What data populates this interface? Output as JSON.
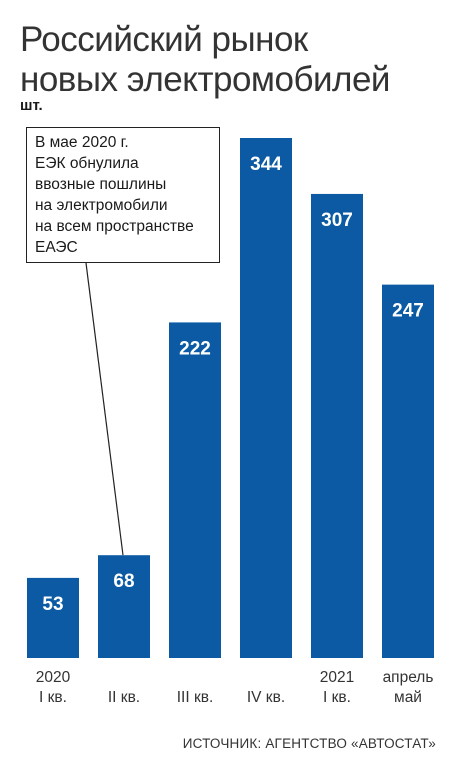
{
  "title_line1": "Российский рынок",
  "title_line2": "новых электромобилей",
  "unit": "шт.",
  "annotation": [
    "В мае 2020 г.",
    "ЕЭК обнулила",
    "ввозные пошлины",
    "на электромобили",
    "на всем пространстве",
    "ЕАЭС"
  ],
  "source": "ИСТОЧНИК: АГЕНТСТВО «АВТОСТАТ»",
  "colors": {
    "bar": "#0b5aa3",
    "bar_label": "#ffffff",
    "text": "#1a1a1a"
  },
  "chart_data": {
    "type": "bar",
    "title": "Российский рынок новых электромобилей",
    "ylabel": "шт.",
    "categories": [
      [
        "2020",
        "I кв."
      ],
      [
        "II кв."
      ],
      [
        "III кв."
      ],
      [
        "IV кв."
      ],
      [
        "2021",
        "I кв."
      ],
      [
        "апрель",
        "май"
      ]
    ],
    "values": [
      53,
      68,
      222,
      344,
      307,
      247
    ],
    "ylim": [
      0,
      344
    ],
    "grid": false,
    "annotation_target_index": 1
  }
}
